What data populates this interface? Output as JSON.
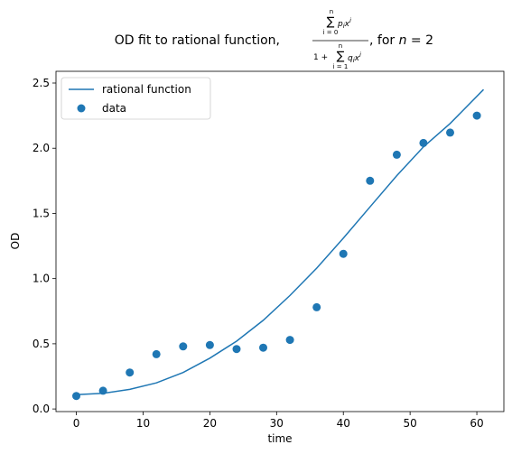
{
  "chart_data": {
    "type": "scatter",
    "title": {
      "prefix": "OD fit to rational function,",
      "suffix": ", for",
      "n_var": "n",
      "n_eq": " = 2",
      "numerator_sum": "∑",
      "numerator_term": "p",
      "numerator_sub": "i",
      "numerator_var": "x",
      "numerator_sup": "i",
      "numerator_upper": "n",
      "numerator_lower": "i = 0",
      "denominator_lead": "1 +",
      "denominator_sum": "∑",
      "denominator_term": "q",
      "denominator_sub": "i",
      "denominator_var": "x",
      "denominator_sup": "i",
      "denominator_upper": "n",
      "denominator_lower": "i = 1"
    },
    "xlabel": "time",
    "ylabel": "OD",
    "xlim": [
      -3.05,
      64.05
    ],
    "ylim": [
      -0.02,
      2.59
    ],
    "xticks": [
      0,
      10,
      20,
      30,
      40,
      50,
      60
    ],
    "yticks": [
      0.0,
      0.5,
      1.0,
      1.5,
      2.0,
      2.5
    ],
    "xtick_labels": [
      "0",
      "10",
      "20",
      "30",
      "40",
      "50",
      "60"
    ],
    "ytick_labels": [
      "0.0",
      "0.5",
      "1.0",
      "1.5",
      "2.0",
      "2.5"
    ],
    "grid": false,
    "legend_position": "top-left",
    "series": [
      {
        "name": "rational function",
        "kind": "line",
        "color": "#1f77b4",
        "x": [
          0,
          4,
          8,
          12,
          16,
          20,
          24,
          28,
          32,
          36,
          40,
          44,
          48,
          52,
          56,
          61
        ],
        "y": [
          0.11,
          0.12,
          0.15,
          0.2,
          0.28,
          0.39,
          0.52,
          0.68,
          0.87,
          1.08,
          1.31,
          1.55,
          1.79,
          2.01,
          2.19,
          2.45
        ]
      },
      {
        "name": "data",
        "kind": "scatter",
        "color": "#1f77b4",
        "x": [
          0,
          4,
          8,
          12,
          16,
          20,
          24,
          28,
          32,
          36,
          40,
          44,
          48,
          52,
          56,
          60
        ],
        "y": [
          0.1,
          0.14,
          0.28,
          0.42,
          0.48,
          0.49,
          0.46,
          0.47,
          0.53,
          0.78,
          1.19,
          1.75,
          1.95,
          2.04,
          2.12,
          2.25
        ]
      }
    ]
  }
}
